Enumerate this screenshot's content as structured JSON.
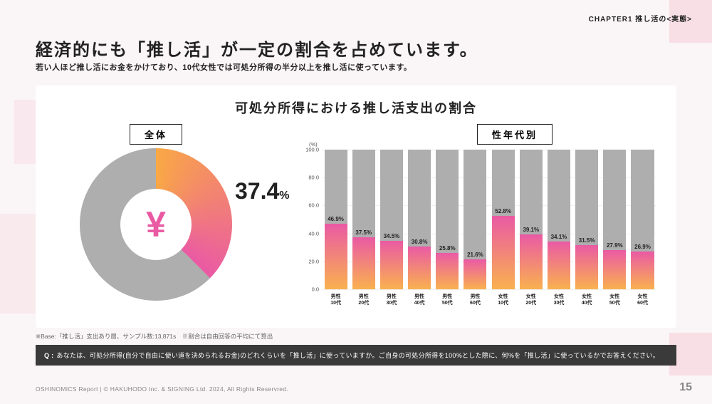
{
  "chapter": "CHAPTER1 推し活の<実態>",
  "title": "経済的にも「推し活」が一定の割合を占めています。",
  "subtitle": "若い人ほど推し活にお金をかけており、10代女性では可処分所得の半分以上を推し活に使っています。",
  "panel_title": "可処分所得における推し活支出の割合",
  "overall_label": "全体",
  "segment_label": "性年代別",
  "donut": {
    "value": 37.4,
    "value_display": "37.4",
    "unit": "%",
    "ring_bg": "#aeaeae",
    "arc_start_color": "#f9a845",
    "arc_end_color": "#ea5aa4",
    "yen_color": "#e95aa3"
  },
  "bars": {
    "ylim": [
      0,
      100
    ],
    "ytick_step": 20,
    "y_unit": "(%)",
    "bg_color": "#aeaeae",
    "fg_top_color": "#ea5aa4",
    "fg_bottom_color": "#f9b14f",
    "categories": [
      {
        "line1": "男性",
        "line2": "10代",
        "value": 46.9,
        "label": "46.9%"
      },
      {
        "line1": "男性",
        "line2": "20代",
        "value": 37.5,
        "label": "37.5%"
      },
      {
        "line1": "男性",
        "line2": "30代",
        "value": 34.5,
        "label": "34.5%"
      },
      {
        "line1": "男性",
        "line2": "40代",
        "value": 30.8,
        "label": "30.8%"
      },
      {
        "line1": "男性",
        "line2": "50代",
        "value": 25.8,
        "label": "25.8%"
      },
      {
        "line1": "男性",
        "line2": "60代",
        "value": 21.6,
        "label": "21.6%"
      },
      {
        "line1": "女性",
        "line2": "10代",
        "value": 52.8,
        "label": "52.8%"
      },
      {
        "line1": "女性",
        "line2": "20代",
        "value": 39.1,
        "label": "39.1%"
      },
      {
        "line1": "女性",
        "line2": "30代",
        "value": 34.1,
        "label": "34.1%"
      },
      {
        "line1": "女性",
        "line2": "40代",
        "value": 31.5,
        "label": "31.5%"
      },
      {
        "line1": "女性",
        "line2": "50代",
        "value": 27.9,
        "label": "27.9%"
      },
      {
        "line1": "女性",
        "line2": "60代",
        "value": 26.9,
        "label": "26.9%"
      }
    ]
  },
  "note": "※Base:「推し活」支出あり層、サンプル数:13,871s　※割合は自由回答の平均にて算出",
  "question_prefix": "Q :",
  "question": "あなたは、可処分所得(自分で自由に使い道を決められるお金)のどれくらいを「推し活」に使っていますか。ご自身の可処分所得を100%とした際に、何%を「推し活」に使っているかでお答えください。",
  "footer": "OSHINOMICS Report | © HAKUHODO Inc. & SIGNING Ltd. 2024, All Rights Reservred.",
  "page_num": "15"
}
